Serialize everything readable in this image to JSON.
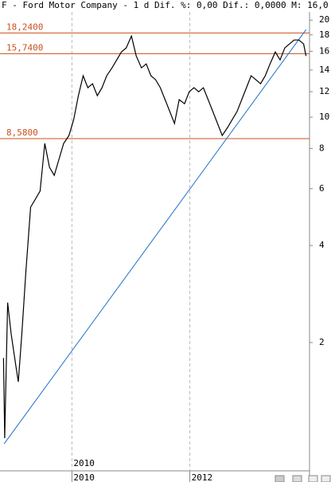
{
  "chart_data": {
    "type": "line",
    "title": "F - Ford Motor Company -  1 d Dif. %: 0,00 Dif.: 0,0000 M: 16,0",
    "log_scale": true,
    "xlim": [
      2008.78,
      2014.03
    ],
    "xticks": [
      2010,
      2012
    ],
    "period_label": "2010",
    "ylim": [
      0.8,
      21.2
    ],
    "yticks": [
      2,
      4,
      6,
      8,
      10,
      12,
      14,
      16,
      18,
      20
    ],
    "series": [
      {
        "color": "#000000",
        "x": [
          2008.84,
          2008.86,
          2008.91,
          2008.97,
          2009.05,
          2009.09,
          2009.15,
          2009.22,
          2009.3,
          2009.38,
          2009.46,
          2009.54,
          2009.62,
          2009.7,
          2009.78,
          2009.86,
          2009.95,
          2010.03,
          2010.11,
          2010.19,
          2010.27,
          2010.35,
          2010.43,
          2010.51,
          2010.59,
          2010.68,
          2010.76,
          2010.84,
          2010.92,
          2011.01,
          2011.09,
          2011.18,
          2011.26,
          2011.34,
          2011.42,
          2011.5,
          2011.58,
          2011.66,
          2011.74,
          2011.82,
          2011.91,
          2011.99,
          2012.07,
          2012.15,
          2012.23,
          2012.31,
          2012.39,
          2012.47,
          2012.55,
          2012.64,
          2012.72,
          2012.8,
          2012.88,
          2012.96,
          2013.04,
          2013.12,
          2013.2,
          2013.28,
          2013.36,
          2013.45,
          2013.53,
          2013.61,
          2013.69,
          2013.77,
          2013.85,
          2013.93,
          2013.97
        ],
        "values": [
          1.79,
          1.01,
          2.66,
          2.12,
          1.69,
          1.51,
          2.12,
          3.34,
          5.26,
          5.57,
          5.9,
          8.29,
          6.99,
          6.6,
          7.4,
          8.29,
          8.77,
          9.83,
          11.66,
          13.44,
          12.34,
          12.7,
          11.66,
          12.34,
          13.44,
          14.22,
          15.05,
          15.93,
          16.39,
          17.85,
          15.49,
          14.22,
          14.63,
          13.44,
          13.06,
          12.34,
          11.33,
          10.41,
          9.56,
          11.33,
          11.01,
          11.99,
          12.34,
          11.99,
          12.34,
          11.33,
          10.41,
          9.56,
          8.77,
          9.29,
          9.83,
          10.41,
          11.33,
          12.34,
          13.44,
          13.06,
          12.7,
          13.44,
          14.63,
          15.93,
          15.05,
          16.39,
          16.87,
          17.35,
          17.35,
          16.87,
          15.49
        ]
      }
    ],
    "trend_line": {
      "color": "#1f6fc8",
      "x": [
        2008.85,
        2013.97
      ],
      "values": [
        0.97,
        18.68
      ]
    },
    "level_color": "#c8501e",
    "levels": [
      {
        "value": 18.24,
        "label": "18,2400"
      },
      {
        "value": 15.74,
        "label": "15,7400"
      },
      {
        "value": 8.58,
        "label": "8,5800"
      }
    ]
  }
}
